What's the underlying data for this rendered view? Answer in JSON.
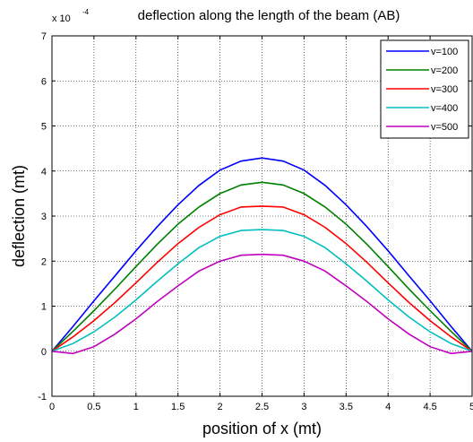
{
  "chart_data": {
    "type": "line",
    "title": "deflection along the length of the beam (AB)",
    "xlabel": "position of x (mt)",
    "ylabel": "deflection (mt)",
    "y_multiplier": "x 10",
    "y_exponent": "-4",
    "xlim": [
      0,
      5
    ],
    "ylim": [
      -1,
      7
    ],
    "grid": true,
    "legend_position": "top-right",
    "x_ticks": [
      "0",
      "0.5",
      "1",
      "1.5",
      "2",
      "2.5",
      "3",
      "3.5",
      "4",
      "4.5",
      "5"
    ],
    "y_ticks": [
      "-1",
      "0",
      "1",
      "2",
      "3",
      "4",
      "5",
      "6",
      "7"
    ],
    "x": [
      0,
      0.25,
      0.5,
      0.75,
      1,
      1.25,
      1.5,
      1.75,
      2,
      2.25,
      2.5,
      2.75,
      3,
      3.25,
      3.5,
      3.75,
      4,
      4.25,
      4.5,
      4.75,
      5
    ],
    "series": [
      {
        "name": "v=100",
        "color": "#0000ff",
        "values": [
          0,
          0.55,
          1.12,
          1.67,
          2.23,
          2.76,
          3.25,
          3.68,
          4.02,
          4.22,
          4.29,
          4.22,
          4.02,
          3.68,
          3.25,
          2.76,
          2.23,
          1.67,
          1.12,
          0.55,
          0
        ]
      },
      {
        "name": "v=200",
        "color": "#008000",
        "values": [
          0,
          0.44,
          0.9,
          1.38,
          1.88,
          2.37,
          2.82,
          3.2,
          3.5,
          3.69,
          3.75,
          3.69,
          3.5,
          3.2,
          2.82,
          2.37,
          1.88,
          1.38,
          0.9,
          0.44,
          0
        ]
      },
      {
        "name": "v=300",
        "color": "#ff0000",
        "values": [
          0,
          0.32,
          0.68,
          1.08,
          1.52,
          1.97,
          2.39,
          2.75,
          3.03,
          3.2,
          3.22,
          3.2,
          3.03,
          2.75,
          2.39,
          1.97,
          1.52,
          1.08,
          0.68,
          0.32,
          0
        ]
      },
      {
        "name": "v=400",
        "color": "#00bfbf",
        "values": [
          0,
          0.17,
          0.43,
          0.76,
          1.14,
          1.55,
          1.94,
          2.3,
          2.55,
          2.68,
          2.7,
          2.68,
          2.55,
          2.3,
          1.94,
          1.55,
          1.14,
          0.76,
          0.43,
          0.17,
          0
        ]
      },
      {
        "name": "v=500",
        "color": "#bf00bf",
        "values": [
          0,
          -0.05,
          0.1,
          0.38,
          0.72,
          1.1,
          1.45,
          1.78,
          2.0,
          2.13,
          2.15,
          2.13,
          2.0,
          1.78,
          1.45,
          1.1,
          0.72,
          0.38,
          0.1,
          -0.05,
          0
        ]
      }
    ]
  }
}
